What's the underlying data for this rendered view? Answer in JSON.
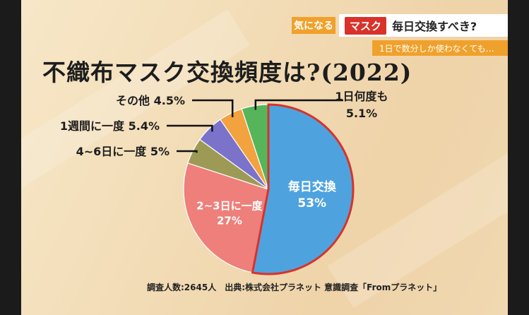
{
  "header": {
    "badge": "気になる",
    "topic_tag": "マスク",
    "topic_text": "毎日交換すべき?",
    "subtitle": "1日で数分しか使わなくても…"
  },
  "footnote": "調査人数:2645人　出典:株式会社プラネット 意識調査「Fromプラネット」",
  "chart_data": {
    "type": "pie",
    "title": "不織布マスク交換頻度は?(2022)",
    "slices": [
      {
        "label": "毎日交換",
        "value": 53,
        "value_text": "53%",
        "color": "#4ea3df"
      },
      {
        "label": "2~3日に一度",
        "value": 27,
        "value_text": "27%",
        "color": "#ee7f7a"
      },
      {
        "label": "4~6日に一度",
        "value": 5,
        "value_text": "5%",
        "color": "#9c9a55"
      },
      {
        "label": "1週間に一度",
        "value": 5.4,
        "value_text": "5.4%",
        "color": "#7a73c9"
      },
      {
        "label": "その他",
        "value": 4.5,
        "value_text": "4.5%",
        "color": "#f2a23e"
      },
      {
        "label": "1日何度も",
        "value": 5.1,
        "value_text": "5.1%",
        "color": "#56b55a"
      }
    ]
  }
}
